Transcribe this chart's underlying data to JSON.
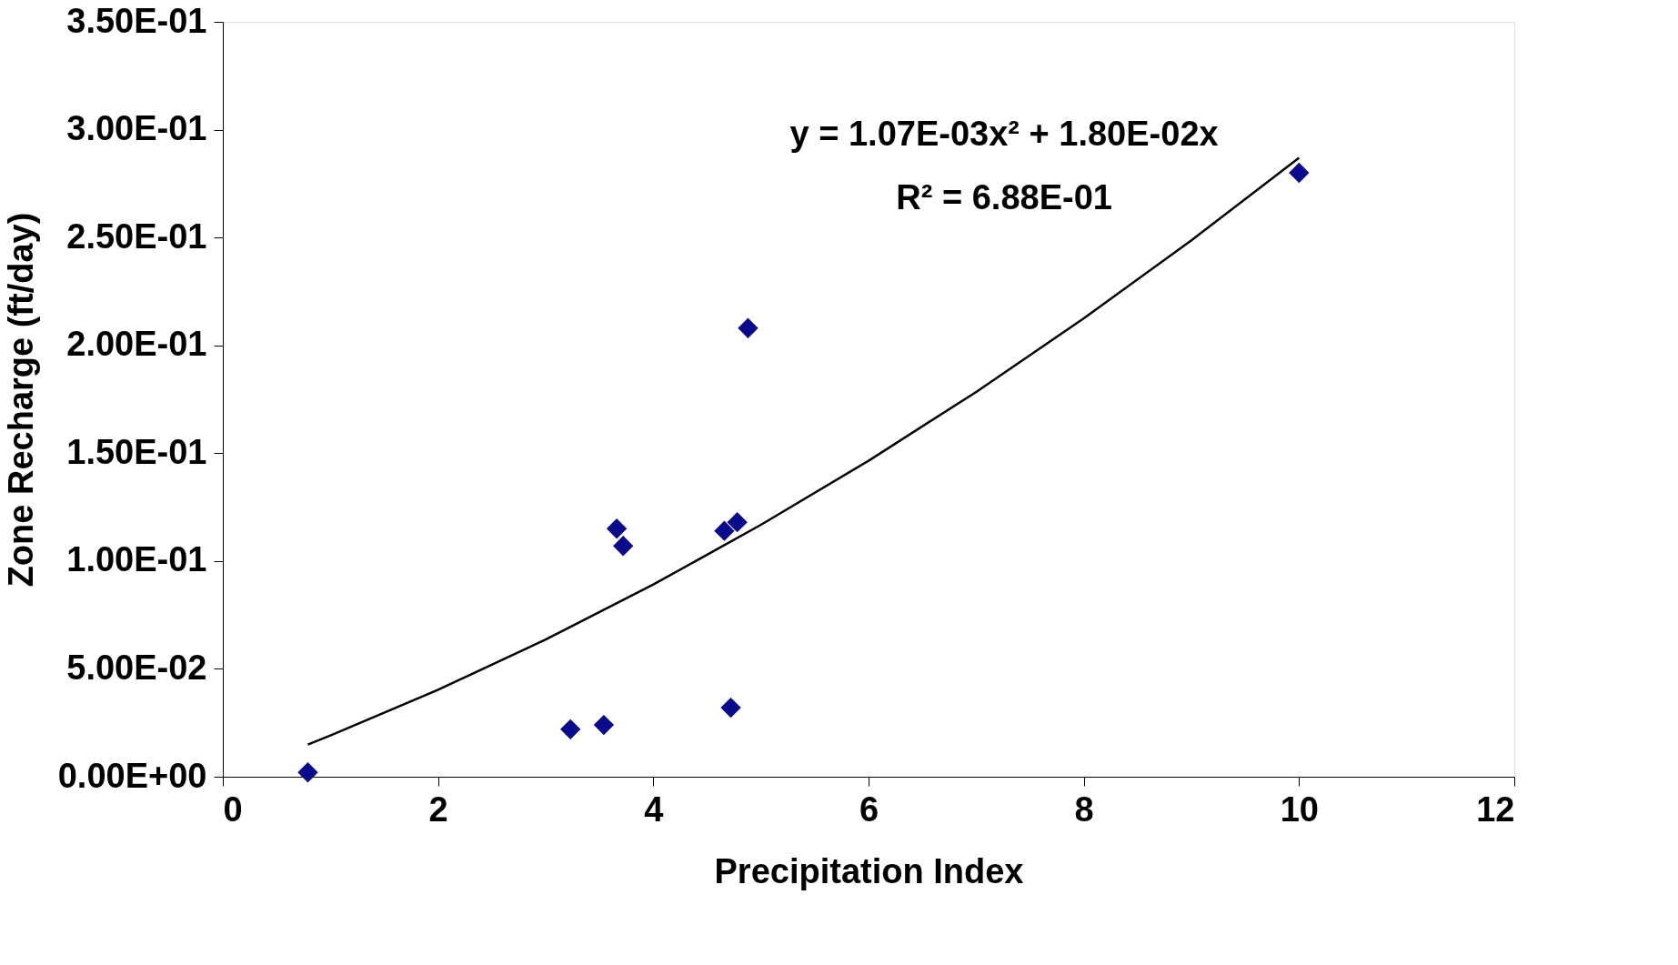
{
  "chart_data": {
    "type": "scatter",
    "xlabel": "Precipitation Index",
    "ylabel": "Zone Recharge (ft/day)",
    "xlim": [
      0,
      12
    ],
    "xticks": [
      0,
      2,
      4,
      6,
      8,
      10,
      12
    ],
    "ylim": [
      0,
      0.35
    ],
    "yticks": [
      {
        "value": 0,
        "label": "0.00E+00"
      },
      {
        "value": 0.05,
        "label": "5.00E-02"
      },
      {
        "value": 0.1,
        "label": "1.00E-01"
      },
      {
        "value": 0.15,
        "label": "1.50E-01"
      },
      {
        "value": 0.2,
        "label": "2.00E-01"
      },
      {
        "value": 0.25,
        "label": "2.50E-01"
      },
      {
        "value": 0.3,
        "label": "3.00E-01"
      },
      {
        "value": 0.35,
        "label": "3.50E-01"
      }
    ],
    "grid": false,
    "series": [
      {
        "marker": "diamond",
        "color": "#0a0a8c",
        "x": [
          0.79,
          3.23,
          3.54,
          3.66,
          3.72,
          4.66,
          4.78,
          4.72,
          4.88,
          10.0
        ],
        "values": [
          0.002,
          0.022,
          0.024,
          0.115,
          0.107,
          0.114,
          0.118,
          0.032,
          0.208,
          0.28
        ]
      },
      {
        "type": "line",
        "marker": "none",
        "color": "#000000",
        "line_style": "solid",
        "x": [
          0.79,
          1,
          2,
          3,
          4,
          5,
          6,
          7,
          8,
          9,
          10
        ],
        "values": [
          0.0149,
          0.0191,
          0.0403,
          0.0636,
          0.0891,
          0.1168,
          0.1465,
          0.1784,
          0.2125,
          0.2487,
          0.287
        ]
      }
    ],
    "annotations": [
      "y = 1.07E-03x² + 1.80E-02x",
      "R² = 6.88E-01"
    ]
  }
}
